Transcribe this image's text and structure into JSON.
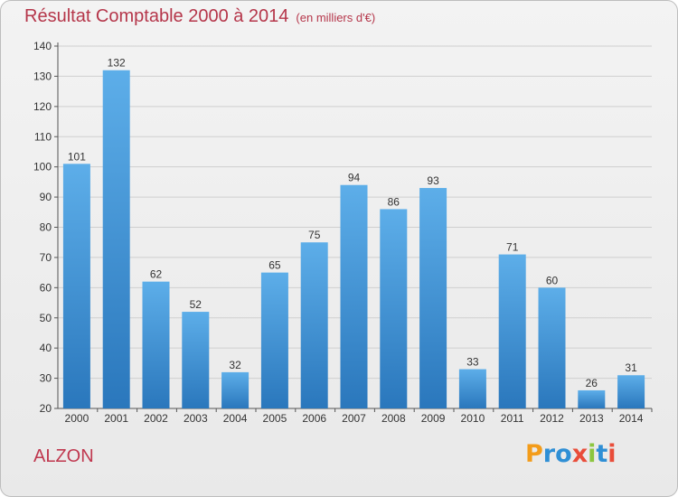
{
  "title": "Résultat Comptable 2000 à 2014",
  "subtitle": "(en milliers d'€)",
  "place": "ALZON",
  "logo": {
    "text": "Proxiti",
    "letters": [
      {
        "ch": "P",
        "color": "#f39c1a"
      },
      {
        "ch": "r",
        "color": "#2f8fd5"
      },
      {
        "ch": "o",
        "color": "#2f8fd5"
      },
      {
        "ch": "x",
        "color": "#e94d3a"
      },
      {
        "ch": "i",
        "color": "#8cc63f"
      },
      {
        "ch": "t",
        "color": "#2f8fd5"
      },
      {
        "ch": "i",
        "color": "#e94d3a"
      }
    ]
  },
  "colors": {
    "bar_top": "#5daee9",
    "bar_bottom": "#2a77bc",
    "grid": "#cfcfcf",
    "title": "#b5364a"
  },
  "chart_data": {
    "type": "bar",
    "title": "Résultat Comptable 2000 à 2014",
    "subtitle": "(en milliers d'€)",
    "xlabel": "",
    "ylabel": "",
    "categories": [
      "2000",
      "2001",
      "2002",
      "2003",
      "2004",
      "2005",
      "2006",
      "2007",
      "2008",
      "2009",
      "2010",
      "2011",
      "2012",
      "2013",
      "2014"
    ],
    "values": [
      101,
      132,
      62,
      52,
      32,
      65,
      75,
      94,
      86,
      93,
      33,
      71,
      60,
      26,
      31
    ],
    "ylim": [
      20,
      140
    ],
    "yticks": [
      20,
      30,
      40,
      50,
      60,
      70,
      80,
      90,
      100,
      110,
      120,
      130,
      140
    ],
    "grid": true
  }
}
